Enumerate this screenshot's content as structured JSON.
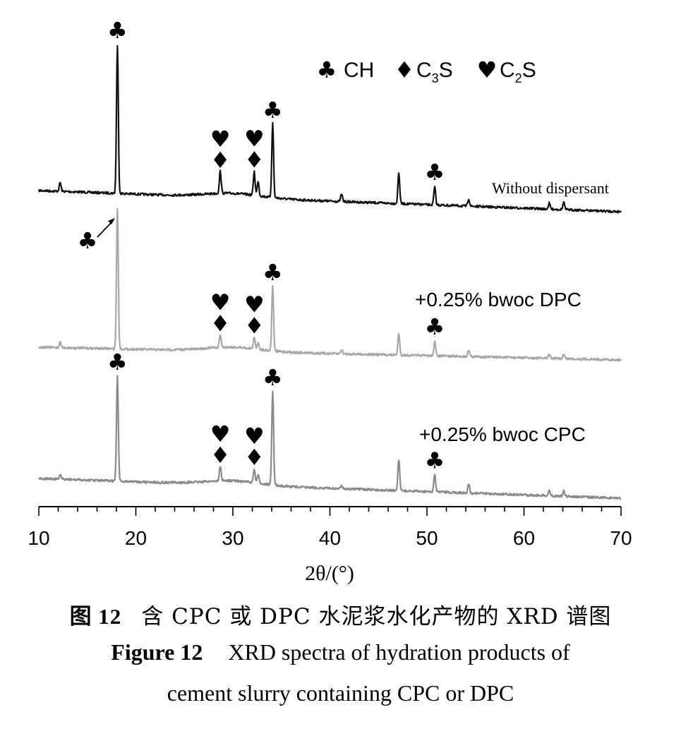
{
  "chart_data": {
    "type": "line",
    "title": "",
    "xlabel": "2θ/(°)",
    "ylabel": "",
    "xlim": [
      10,
      70
    ],
    "xticks": [
      10,
      20,
      30,
      40,
      50,
      60,
      70
    ],
    "y_axis_shown": false,
    "legend": [
      {
        "symbol": "♣",
        "phase": "CH"
      },
      {
        "symbol": "♦",
        "phase": "C",
        "sub": "3",
        "suffix": "S"
      },
      {
        "symbol": "♥",
        "phase": "C",
        "sub": "2",
        "suffix": "S"
      }
    ],
    "series": [
      {
        "name": "Without dispersant",
        "color": "#111111",
        "peaks": [
          {
            "x": 12.2,
            "rel": 0.06
          },
          {
            "x": 18.1,
            "rel": 1.0,
            "marker": "♣"
          },
          {
            "x": 28.7,
            "rel": 0.15,
            "marker": "♥♦"
          },
          {
            "x": 32.2,
            "rel": 0.16,
            "marker": "♥♦"
          },
          {
            "x": 32.6,
            "rel": 0.1
          },
          {
            "x": 34.1,
            "rel": 0.5,
            "marker": "♣"
          },
          {
            "x": 41.2,
            "rel": 0.05
          },
          {
            "x": 47.1,
            "rel": 0.21
          },
          {
            "x": 50.8,
            "rel": 0.12,
            "marker": "♣"
          },
          {
            "x": 54.3,
            "rel": 0.05
          },
          {
            "x": 62.6,
            "rel": 0.04
          },
          {
            "x": 64.1,
            "rel": 0.05
          }
        ]
      },
      {
        "name": "+0.25% bwoc DPC",
        "color": "#a8a8a8",
        "peaks": [
          {
            "x": 12.2,
            "rel": 0.04
          },
          {
            "x": 18.1,
            "rel": 1.0,
            "marker": "♣"
          },
          {
            "x": 28.7,
            "rel": 0.09,
            "marker": "♥♦"
          },
          {
            "x": 32.2,
            "rel": 0.08,
            "marker": "♥♦"
          },
          {
            "x": 32.6,
            "rel": 0.05
          },
          {
            "x": 34.1,
            "rel": 0.46,
            "marker": "♣"
          },
          {
            "x": 41.2,
            "rel": 0.03
          },
          {
            "x": 47.1,
            "rel": 0.15
          },
          {
            "x": 50.8,
            "rel": 0.1,
            "marker": "♣"
          },
          {
            "x": 54.3,
            "rel": 0.05
          },
          {
            "x": 62.6,
            "rel": 0.03
          },
          {
            "x": 64.1,
            "rel": 0.03
          }
        ]
      },
      {
        "name": "+0.25% bwoc CPC",
        "color": "#8a8a8a",
        "peaks": [
          {
            "x": 12.2,
            "rel": 0.04
          },
          {
            "x": 18.1,
            "rel": 1.0,
            "marker": "♣"
          },
          {
            "x": 28.7,
            "rel": 0.14,
            "marker": "♥♦"
          },
          {
            "x": 32.2,
            "rel": 0.13,
            "marker": "♥♦"
          },
          {
            "x": 32.6,
            "rel": 0.08
          },
          {
            "x": 34.1,
            "rel": 0.9,
            "marker": "♣"
          },
          {
            "x": 41.2,
            "rel": 0.03
          },
          {
            "x": 47.1,
            "rel": 0.3
          },
          {
            "x": 50.8,
            "rel": 0.16,
            "marker": "♣"
          },
          {
            "x": 54.3,
            "rel": 0.09
          },
          {
            "x": 62.6,
            "rel": 0.05
          },
          {
            "x": 64.1,
            "rel": 0.05
          }
        ]
      }
    ]
  },
  "caption": {
    "cn_label": "图 12",
    "cn_text": "含 CPC 或 DPC 水泥浆水化产物的 XRD 谱图",
    "en_label": "Figure 12",
    "en_line1": "XRD spectra of hydration products of",
    "en_line2": "cement slurry containing CPC or DPC"
  }
}
